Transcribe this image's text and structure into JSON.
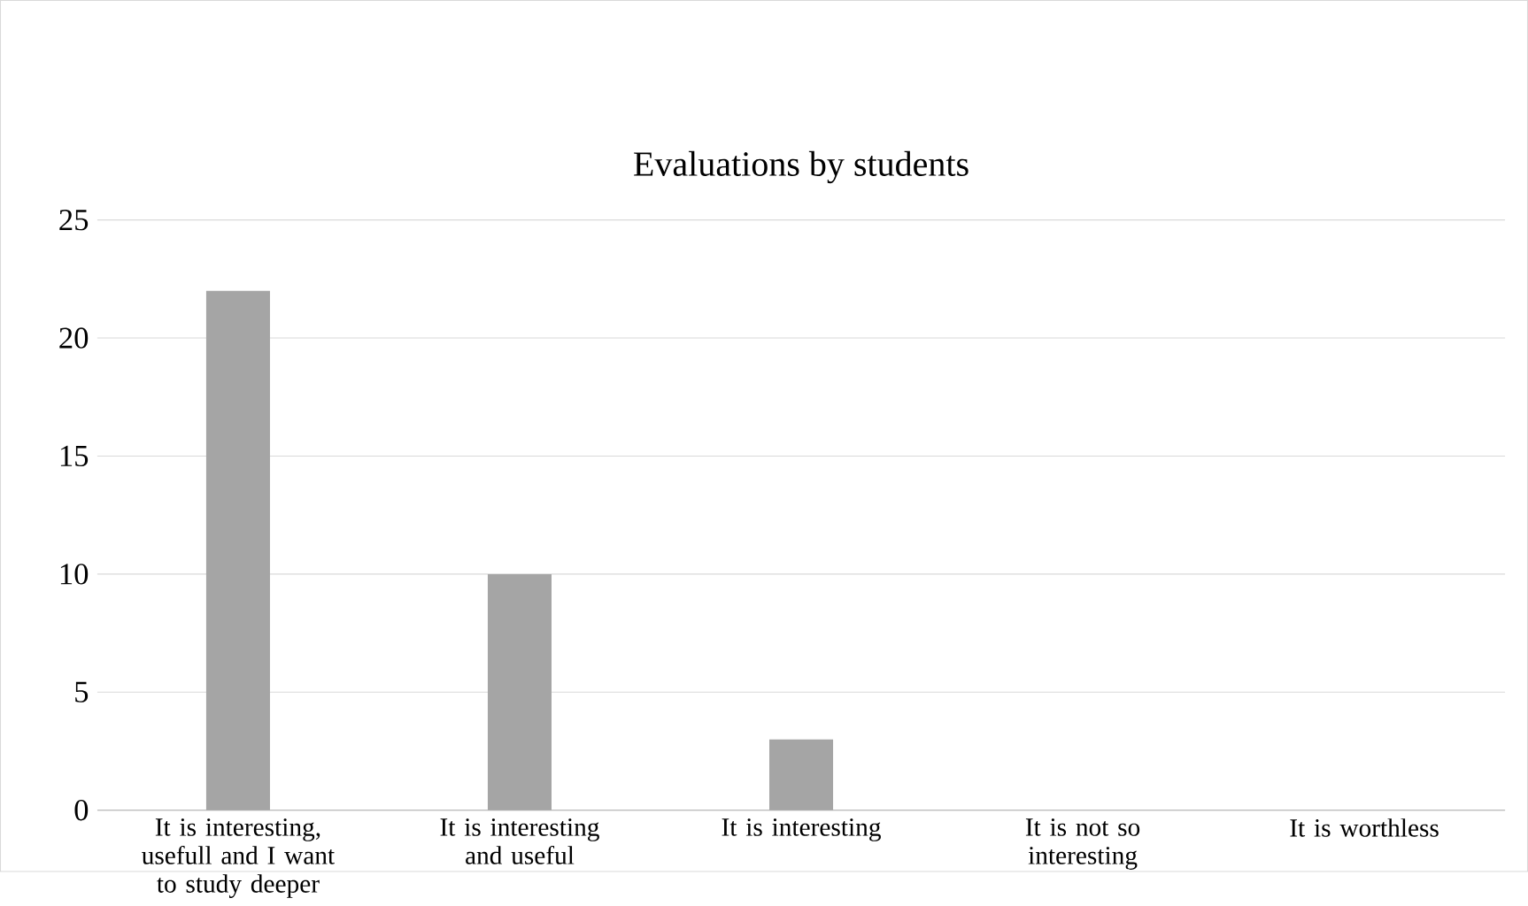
{
  "chart_data": {
    "type": "bar",
    "title": "Evaluations by students",
    "categories": [
      "It is interesting, usefull and I want to study deeper",
      "It is interesting and useful",
      "It is interesting",
      "It is not so interesting",
      "It is worthless"
    ],
    "values": [
      22,
      10,
      3,
      0,
      0
    ],
    "color": "#a5a5a5",
    "ylim": [
      0,
      25
    ],
    "yticks": [
      0,
      5,
      10,
      15,
      20,
      25
    ],
    "grid": "y"
  }
}
